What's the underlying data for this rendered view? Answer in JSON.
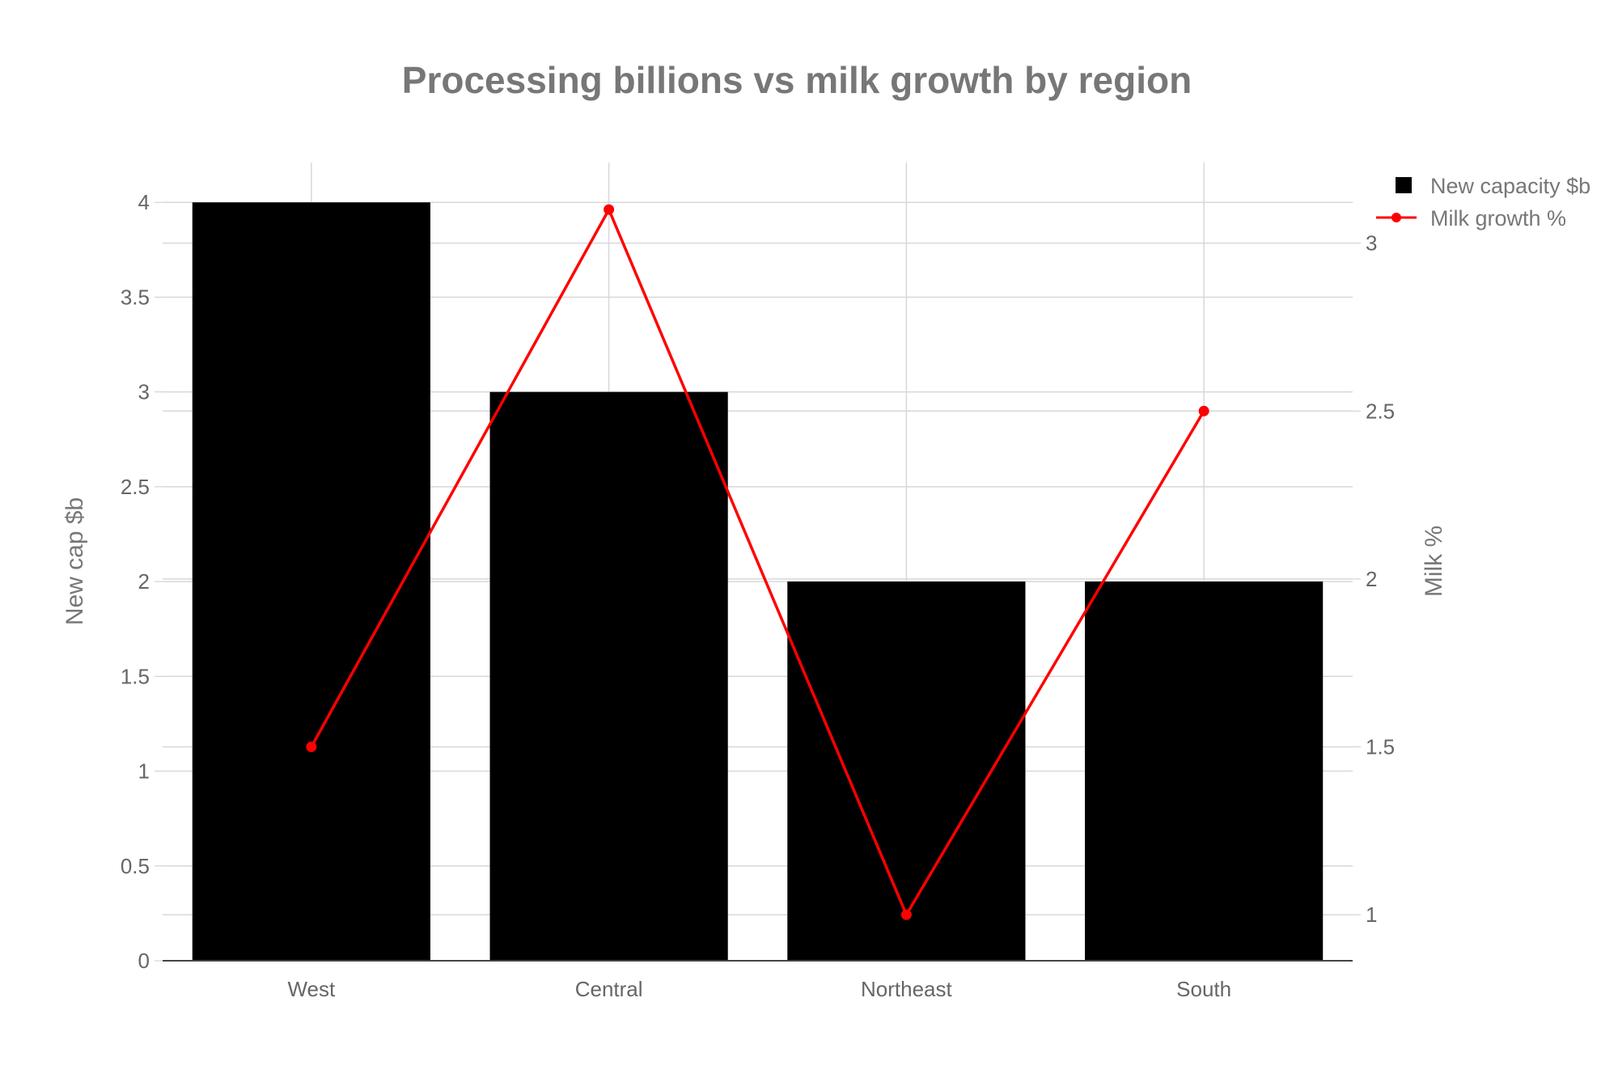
{
  "chart_data": {
    "type": "bar+line",
    "title": "Processing billions vs milk growth by region",
    "categories": [
      "West",
      "Central",
      "Northeast",
      "South"
    ],
    "series": [
      {
        "name": "New capacity $b",
        "type": "bar",
        "axis": "left",
        "color": "#000000",
        "values": [
          4,
          3,
          2,
          2
        ]
      },
      {
        "name": "Milk growth %",
        "type": "line",
        "axis": "right",
        "color": "#ff0000",
        "values": [
          1.5,
          3.1,
          1.0,
          2.5
        ]
      }
    ],
    "ylabel": "New cap $b",
    "y2label": "Milk %",
    "ylim": [
      0,
      4.21
    ],
    "y2lim": [
      0.863,
      3.24
    ],
    "yticks": [
      "0",
      "0.5",
      "1",
      "1.5",
      "2",
      "2.5",
      "3",
      "3.5",
      "4"
    ],
    "y2ticks": [
      "1",
      "1.5",
      "2",
      "2.5",
      "3"
    ],
    "grid": true,
    "legend": "top-right"
  }
}
